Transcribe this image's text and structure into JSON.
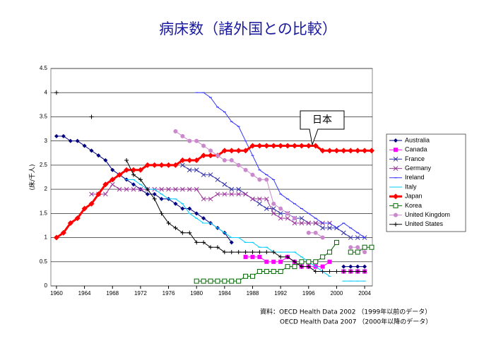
{
  "chart_data": {
    "type": "line",
    "title": "病床数（諸外国との比較）",
    "y_label": "(床/千人)",
    "annotation": "日本",
    "source": [
      "資料：OECD Health Data 2002 （1999年以前のデータ）",
      "OECD Health Data 2007 （2000年以降のデータ）"
    ],
    "x": [
      1960,
      1961,
      1962,
      1963,
      1964,
      1965,
      1966,
      1967,
      1968,
      1969,
      1970,
      1971,
      1972,
      1973,
      1974,
      1975,
      1976,
      1977,
      1978,
      1979,
      1980,
      1981,
      1982,
      1983,
      1984,
      1985,
      1986,
      1987,
      1988,
      1989,
      1990,
      1991,
      1992,
      1993,
      1994,
      1995,
      1996,
      1997,
      1998,
      1999,
      2000,
      2001,
      2002,
      2003,
      2004,
      2005
    ],
    "xlim": [
      1959.2,
      2005.1
    ],
    "xticks": [
      1960,
      1964,
      1968,
      1972,
      1976,
      1980,
      1984,
      1988,
      1992,
      1996,
      2000,
      2004
    ],
    "ylim": [
      0,
      4.5
    ],
    "yticks": [
      0,
      0.5,
      1,
      1.5,
      2,
      2.5,
      3,
      3.5,
      4,
      4.5
    ],
    "grid": true,
    "legend": "right",
    "series": [
      {
        "name": "Australia",
        "color": "#000080",
        "marker": "diamond",
        "values": [
          3.1,
          3.1,
          3.0,
          3.0,
          2.9,
          2.8,
          2.7,
          2.6,
          2.4,
          2.3,
          2.2,
          2.1,
          2.0,
          1.9,
          1.9,
          1.8,
          1.8,
          1.7,
          1.6,
          1.6,
          1.5,
          1.4,
          1.3,
          1.2,
          1.1,
          0.9,
          null,
          null,
          null,
          null,
          null,
          null,
          null,
          null,
          null,
          null,
          null,
          null,
          null,
          null,
          null,
          0.4,
          0.4,
          0.4,
          0.4,
          null
        ]
      },
      {
        "name": "Canada",
        "color": "#ff00ff",
        "marker": "square",
        "values": [
          null,
          null,
          null,
          null,
          null,
          null,
          null,
          null,
          null,
          null,
          null,
          null,
          null,
          null,
          null,
          null,
          null,
          null,
          null,
          null,
          null,
          null,
          null,
          null,
          null,
          null,
          null,
          0.6,
          0.6,
          0.6,
          0.5,
          0.5,
          0.5,
          0.6,
          0.5,
          0.4,
          0.4,
          0.4,
          0.4,
          0.5,
          null,
          0.3,
          0.3,
          0.3,
          0.3,
          null
        ]
      },
      {
        "name": "France",
        "color": "#3333aa",
        "marker": "x",
        "values": [
          null,
          null,
          null,
          null,
          null,
          null,
          null,
          null,
          null,
          null,
          null,
          null,
          null,
          null,
          null,
          null,
          null,
          null,
          2.5,
          2.4,
          2.4,
          2.3,
          2.3,
          2.2,
          2.1,
          2.0,
          2.0,
          1.9,
          1.8,
          1.7,
          1.6,
          1.6,
          1.5,
          1.5,
          1.4,
          1.4,
          1.3,
          1.3,
          1.2,
          1.2,
          1.2,
          1.1,
          1.0,
          1.0,
          1.0,
          null
        ]
      },
      {
        "name": "Germany",
        "color": "#993399",
        "marker": "x",
        "values": [
          null,
          null,
          null,
          null,
          null,
          1.9,
          1.9,
          1.9,
          2.1,
          2.0,
          2.0,
          2.0,
          2.0,
          2.0,
          2.0,
          2.0,
          2.0,
          2.0,
          2.0,
          2.0,
          2.0,
          1.8,
          1.8,
          1.9,
          1.9,
          1.9,
          1.9,
          1.9,
          1.8,
          1.8,
          1.8,
          1.5,
          1.4,
          1.4,
          1.3,
          1.3,
          1.3,
          1.3,
          1.3,
          1.3,
          null,
          null,
          null,
          null,
          null,
          null
        ]
      },
      {
        "name": "Ireland",
        "color": "#3333ff",
        "marker": "dash",
        "values": [
          null,
          null,
          null,
          null,
          null,
          null,
          null,
          null,
          null,
          null,
          null,
          null,
          null,
          null,
          null,
          null,
          null,
          null,
          null,
          null,
          4.0,
          4.0,
          3.9,
          3.7,
          3.6,
          3.4,
          3.3,
          3.0,
          2.7,
          2.4,
          2.3,
          2.2,
          1.9,
          1.8,
          1.7,
          1.6,
          1.5,
          1.4,
          1.3,
          1.3,
          1.2,
          1.3,
          1.2,
          1.1,
          1.0,
          null
        ]
      },
      {
        "name": "Italy",
        "color": "#00ccff",
        "marker": "dash",
        "values": [
          null,
          null,
          null,
          null,
          null,
          null,
          null,
          null,
          null,
          null,
          2.2,
          2.2,
          2.1,
          2.0,
          2.0,
          1.9,
          1.8,
          1.8,
          1.7,
          1.5,
          1.4,
          1.3,
          1.3,
          1.2,
          1.1,
          1.0,
          1.0,
          0.9,
          0.9,
          0.8,
          0.8,
          0.7,
          0.7,
          0.7,
          0.7,
          0.6,
          0.5,
          0.4,
          0.3,
          0.2,
          null,
          0.1,
          0.1,
          0.1,
          0.1,
          null
        ]
      },
      {
        "name": "Japan",
        "color": "#ff0000",
        "marker": "bigdiamond",
        "values": [
          1.0,
          1.1,
          1.3,
          1.4,
          1.6,
          1.7,
          1.9,
          2.1,
          2.2,
          2.3,
          2.4,
          2.4,
          2.4,
          2.5,
          2.5,
          2.5,
          2.5,
          2.5,
          2.6,
          2.6,
          2.6,
          2.7,
          2.7,
          2.7,
          2.8,
          2.8,
          2.8,
          2.8,
          2.9,
          2.9,
          2.9,
          2.9,
          2.9,
          2.9,
          2.9,
          2.9,
          2.9,
          2.9,
          2.8,
          2.8,
          2.8,
          2.8,
          2.8,
          2.8,
          2.8,
          2.8
        ]
      },
      {
        "name": "Korea",
        "color": "#006600",
        "marker": "opensquare",
        "values": [
          null,
          null,
          null,
          null,
          null,
          null,
          null,
          null,
          null,
          null,
          null,
          null,
          null,
          null,
          null,
          null,
          null,
          null,
          null,
          null,
          0.1,
          0.1,
          0.1,
          0.1,
          0.1,
          0.1,
          0.1,
          0.2,
          0.2,
          0.3,
          0.3,
          0.3,
          0.3,
          0.4,
          0.4,
          0.5,
          0.5,
          0.5,
          0.6,
          0.7,
          0.9,
          null,
          0.7,
          0.7,
          0.8,
          0.8
        ]
      },
      {
        "name": "United Kingdom",
        "color": "#cc88cc",
        "marker": "circle",
        "values": [
          null,
          null,
          null,
          null,
          null,
          null,
          null,
          null,
          null,
          null,
          null,
          null,
          null,
          null,
          null,
          null,
          null,
          3.2,
          3.1,
          3.0,
          3.0,
          2.9,
          2.8,
          2.7,
          2.6,
          2.6,
          2.5,
          2.4,
          2.3,
          2.2,
          2.2,
          1.7,
          1.6,
          1.5,
          1.4,
          null,
          1.1,
          1.1,
          1.0,
          null,
          null,
          null,
          0.8,
          0.8,
          0.7,
          null
        ]
      },
      {
        "name": "United States",
        "color": "#000000",
        "marker": "plus",
        "values": [
          4.0,
          null,
          null,
          null,
          null,
          3.5,
          null,
          null,
          null,
          null,
          2.6,
          2.3,
          2.2,
          2.0,
          1.8,
          1.5,
          1.3,
          1.2,
          1.1,
          1.1,
          0.9,
          0.9,
          0.8,
          0.8,
          0.7,
          0.7,
          0.7,
          0.7,
          0.7,
          0.7,
          0.7,
          0.7,
          0.6,
          0.6,
          0.5,
          0.4,
          0.4,
          0.3,
          0.3,
          0.3,
          0.3,
          0.3,
          0.3,
          0.3,
          0.3,
          null
        ]
      }
    ]
  }
}
